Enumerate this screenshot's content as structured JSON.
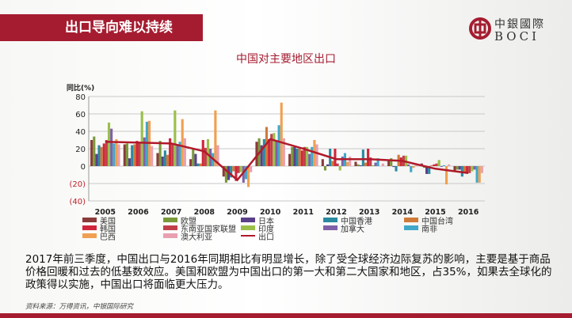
{
  "header": {
    "title": "出口导向难以持续"
  },
  "logo": {
    "cn": "中銀國際",
    "en": "BOCI",
    "color": "#a51c30"
  },
  "chart_data": {
    "type": "bar",
    "title": "中国对主要地区出口",
    "ylabel": "同比(%)",
    "ylim": [
      -40,
      80
    ],
    "yticks": [
      "80",
      "60",
      "40",
      "20",
      "0",
      "(20)",
      "(40)"
    ],
    "ytick_values": [
      80,
      60,
      40,
      20,
      0,
      -20,
      -40
    ],
    "grid": true,
    "legend_placement": "bottom",
    "categories": [
      "2005",
      "2006",
      "2007",
      "2008",
      "2009",
      "2010",
      "2011",
      "2012",
      "2013",
      "2014",
      "2015",
      "2016"
    ],
    "series": [
      {
        "name": "美国",
        "color": "#8b3a3a",
        "values": [
          30,
          25,
          15,
          8,
          -12,
          28,
          14,
          8,
          5,
          7,
          3,
          -6
        ]
      },
      {
        "name": "欧盟",
        "color": "#7a9a3a",
        "values": [
          34,
          26,
          29,
          20,
          -19,
          32,
          22,
          -5,
          2,
          9,
          -2,
          -4
        ]
      },
      {
        "name": "日本",
        "color": "#5a3f8a",
        "values": [
          14,
          9,
          11,
          14,
          -16,
          24,
          22,
          2,
          1,
          -1,
          -9,
          -4
        ]
      },
      {
        "name": "中国香港",
        "color": "#2a8aa0",
        "values": [
          24,
          24,
          18,
          3,
          -13,
          31,
          20,
          20,
          19,
          -6,
          -9,
          -12
        ]
      },
      {
        "name": "中国台湾",
        "color": "#d07a3a",
        "values": [
          22,
          25,
          13,
          3,
          -6,
          45,
          20,
          6,
          4,
          13,
          1,
          -7
        ]
      },
      {
        "name": "韩国",
        "color": "#d0263a",
        "values": [
          26,
          29,
          32,
          30,
          -17,
          31,
          18,
          20,
          20,
          10,
          2,
          -7
        ]
      },
      {
        "name": "东南亚国家联盟",
        "color": "#c0404a",
        "values": [
          30,
          27,
          26,
          21,
          -8,
          37,
          22,
          3,
          10,
          12,
          3,
          -8
        ]
      },
      {
        "name": "印度",
        "color": "#9ac04a",
        "values": [
          50,
          63,
          64,
          31,
          -7,
          38,
          22,
          -5,
          1,
          12,
          7,
          -6
        ]
      },
      {
        "name": "加拿大",
        "color": "#8060a8",
        "values": [
          43,
          33,
          25,
          20,
          -19,
          29,
          14,
          11,
          4,
          2,
          -1,
          -4
        ]
      },
      {
        "name": "南非",
        "color": "#40a8c8",
        "values": [
          26,
          51,
          28,
          15,
          -15,
          47,
          22,
          15,
          9,
          -7,
          1,
          -19
        ]
      },
      {
        "name": "巴西",
        "color": "#f0a050",
        "values": [
          31,
          52,
          54,
          64,
          -24,
          73,
          30,
          5,
          0,
          -2,
          -21,
          -19
        ]
      },
      {
        "name": "澳大利亚",
        "color": "#e8a0b0",
        "values": [
          25,
          23,
          32,
          24,
          -7,
          32,
          25,
          11,
          3,
          1,
          2,
          -8
        ]
      }
    ],
    "line": {
      "name": "出口",
      "color": "#b01a2a",
      "values": [
        28,
        27,
        26,
        17,
        -16,
        31,
        20,
        8,
        8,
        6,
        -3,
        -8
      ]
    }
  },
  "body": {
    "text": "2017年前三季度，中国出口与2016年同期相比有明显增长，除了受全球经济边际复苏的影响，主要是基于商品价格回暖和过去的低基数效应。美国和欧盟为中国出口的第一大和第二大国家和地区，占35%，如果去全球化的政策得以实施，中国出口将面临更大压力。"
  },
  "source": "资料来源：万得资讯，中银国际研究"
}
